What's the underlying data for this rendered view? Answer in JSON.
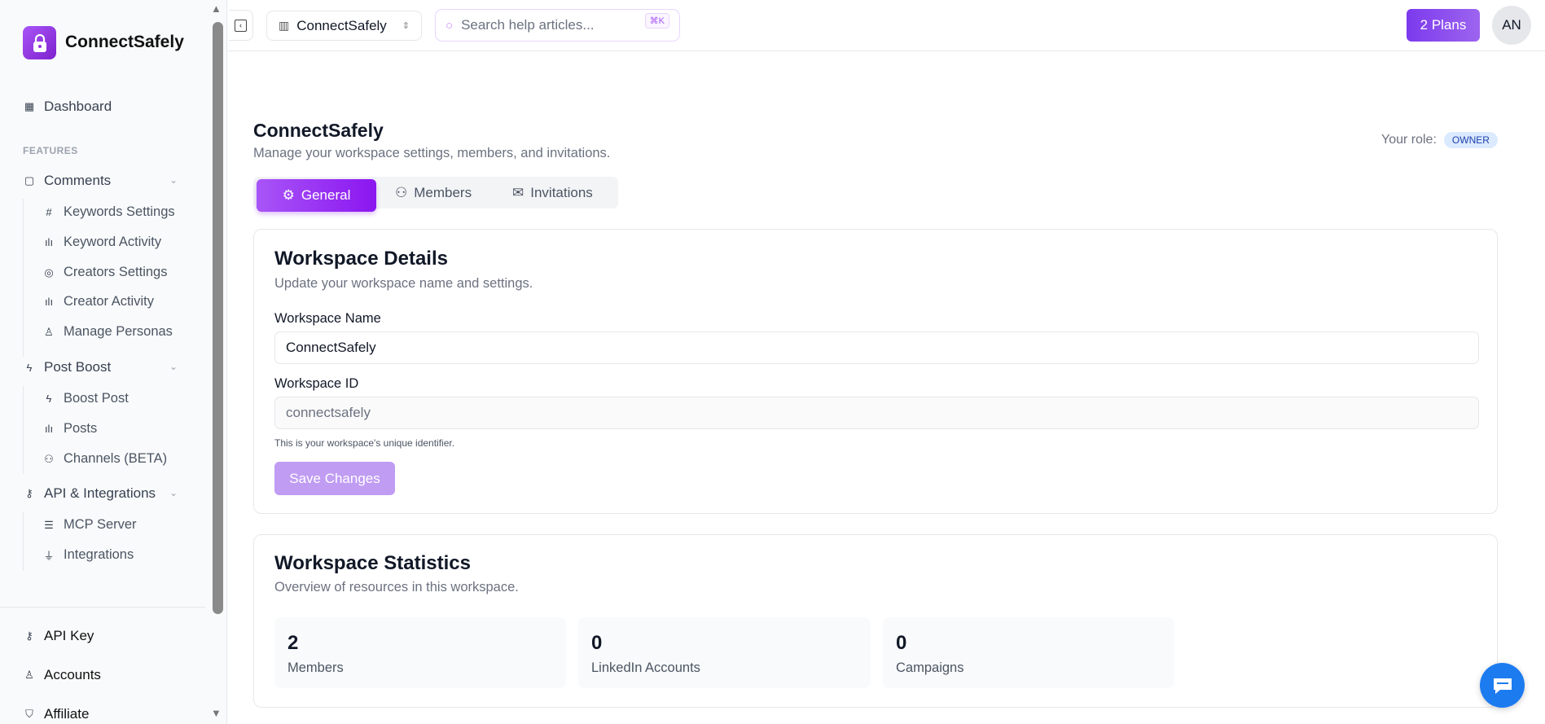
{
  "brand": {
    "name": "ConnectSafely",
    "logo_icon": "lock-icon",
    "accent": "#9333ea"
  },
  "sidebar": {
    "dashboard": "Dashboard",
    "section": "FEATURES",
    "groups": [
      {
        "label": "Comments",
        "items": [
          "Keywords Settings",
          "Keyword Activity",
          "Creators Settings",
          "Creator Activity",
          "Manage Personas"
        ]
      },
      {
        "label": "Post Boost",
        "items": [
          "Boost Post",
          "Posts",
          "Channels (BETA)"
        ]
      },
      {
        "label": "API & Integrations",
        "items": [
          "MCP Server",
          "Integrations"
        ]
      }
    ],
    "bottom": [
      "API Key",
      "Accounts",
      "Affiliate"
    ]
  },
  "topbar": {
    "workspace": "ConnectSafely",
    "search_placeholder": "Search help articles...",
    "shortcut": "⌘K",
    "plans": "2 Plans",
    "avatar": "AN"
  },
  "page": {
    "title": "ConnectSafely",
    "subtitle": "Manage your workspace settings, members, and invitations.",
    "role_label": "Your role:",
    "role": "OWNER",
    "tabs": [
      {
        "label": "General",
        "active": true
      },
      {
        "label": "Members"
      },
      {
        "label": "Invitations"
      }
    ]
  },
  "details": {
    "title": "Workspace Details",
    "subtitle": "Update your workspace name and settings.",
    "name_label": "Workspace Name",
    "name_value": "ConnectSafely",
    "id_label": "Workspace ID",
    "id_value": "connectsafely",
    "id_help": "This is your workspace's unique identifier.",
    "save": "Save Changes"
  },
  "stats": {
    "title": "Workspace Statistics",
    "subtitle": "Overview of resources in this workspace.",
    "items": [
      {
        "value": "2",
        "label": "Members"
      },
      {
        "value": "0",
        "label": "LinkedIn Accounts"
      },
      {
        "value": "0",
        "label": "Campaigns"
      }
    ]
  }
}
